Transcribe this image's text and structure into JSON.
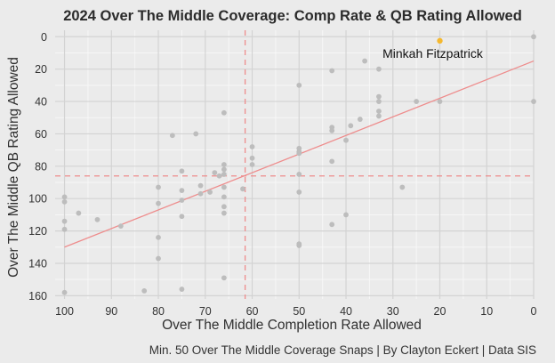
{
  "chart_data": {
    "type": "scatter",
    "title": "2024 Over The Middle Coverage: Comp Rate & QB Rating Allowed",
    "xlabel": "Over The Middle Completion Rate Allowed",
    "ylabel": "Over The Middle QB Rating Allowed",
    "caption": "Min. 50 Over The Middle Coverage Snaps | By Clayton Eckert | Data SIS",
    "x_reversed": true,
    "y_reversed": true,
    "xlim": [
      0,
      102
    ],
    "ylim": [
      -4,
      162
    ],
    "x_ticks": [
      100,
      90,
      80,
      70,
      60,
      50,
      40,
      30,
      20,
      10,
      0
    ],
    "y_ticks": [
      0,
      20,
      40,
      60,
      80,
      100,
      120,
      140,
      160
    ],
    "grid": true,
    "reference_lines": {
      "x_mean": 61.5,
      "y_mean": 86
    },
    "trend_line": {
      "x": [
        100,
        0
      ],
      "y": [
        130,
        15
      ]
    },
    "highlight": {
      "label": "Minkah Fitzpatrick",
      "x": 20,
      "y": 2.5,
      "color": "#f5b82e"
    },
    "point_color": "#bdbdbd",
    "line_color": "#ee8c8c",
    "points": [
      [
        100,
        158
      ],
      [
        100,
        119
      ],
      [
        100,
        114
      ],
      [
        100,
        102
      ],
      [
        100,
        99
      ],
      [
        97,
        109
      ],
      [
        93,
        113
      ],
      [
        88,
        117
      ],
      [
        83,
        157
      ],
      [
        80,
        137
      ],
      [
        80,
        124
      ],
      [
        80,
        103
      ],
      [
        80,
        93
      ],
      [
        77,
        61
      ],
      [
        75,
        83
      ],
      [
        75,
        95
      ],
      [
        75,
        101
      ],
      [
        75,
        111
      ],
      [
        75,
        156
      ],
      [
        72,
        60
      ],
      [
        71,
        97
      ],
      [
        71,
        92
      ],
      [
        69,
        96
      ],
      [
        68,
        84
      ],
      [
        67,
        86
      ],
      [
        66,
        47
      ],
      [
        66,
        79
      ],
      [
        66,
        82
      ],
      [
        66,
        85
      ],
      [
        66,
        93
      ],
      [
        66,
        99
      ],
      [
        66,
        105
      ],
      [
        66,
        109
      ],
      [
        66,
        149
      ],
      [
        62,
        94
      ],
      [
        60,
        68
      ],
      [
        60,
        75
      ],
      [
        60,
        79
      ],
      [
        50,
        30
      ],
      [
        50,
        69
      ],
      [
        50,
        71
      ],
      [
        50,
        72
      ],
      [
        50,
        85
      ],
      [
        50,
        96
      ],
      [
        50,
        128
      ],
      [
        50,
        129
      ],
      [
        43,
        21
      ],
      [
        43,
        56
      ],
      [
        43,
        58
      ],
      [
        43,
        77
      ],
      [
        43,
        116
      ],
      [
        40,
        64
      ],
      [
        40,
        110
      ],
      [
        39,
        55
      ],
      [
        37,
        51
      ],
      [
        36,
        15
      ],
      [
        33,
        20
      ],
      [
        33,
        37
      ],
      [
        33,
        40
      ],
      [
        33,
        46
      ],
      [
        33,
        49
      ],
      [
        28,
        93
      ],
      [
        25,
        40
      ],
      [
        20,
        40
      ],
      [
        0,
        0
      ],
      [
        0,
        40
      ]
    ]
  }
}
